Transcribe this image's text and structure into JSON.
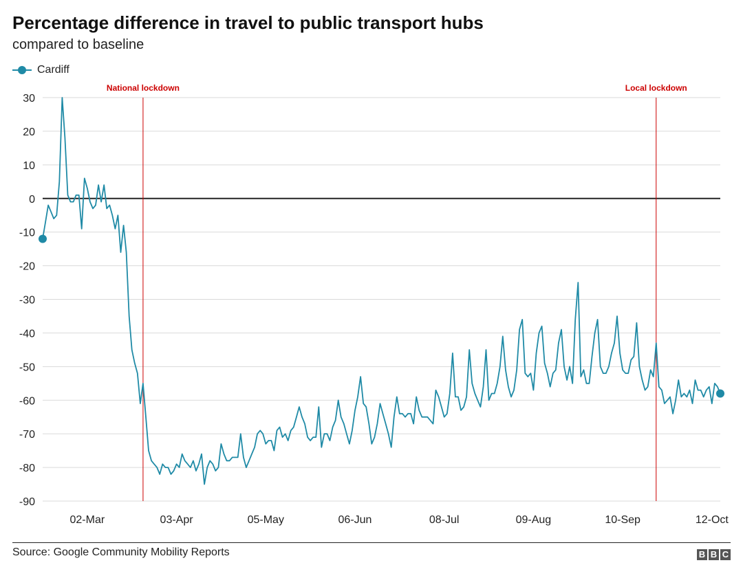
{
  "header": {
    "title": "Percentage difference in travel to public transport hubs",
    "subtitle": "compared to baseline"
  },
  "footer": {
    "source": "Source: Google Community Mobility Reports",
    "logo_letters": [
      "B",
      "B",
      "C"
    ]
  },
  "chart_data": {
    "type": "line",
    "title": "Percentage difference in travel to public transport hubs",
    "subtitle": "compared to baseline",
    "xlabel": "",
    "ylabel": "",
    "ylim": [
      -90,
      30
    ],
    "yticks": [
      30,
      20,
      10,
      0,
      -10,
      -20,
      -30,
      -40,
      -50,
      -60,
      -70,
      -80,
      -90
    ],
    "x_start": "15-Feb",
    "x_end": "16-Oct",
    "xtick_labels": [
      "02-Mar",
      "03-Apr",
      "05-May",
      "06-Jun",
      "08-Jul",
      "09-Aug",
      "10-Sep",
      "12-Oct"
    ],
    "grid": true,
    "legend_position": "top-left",
    "series": [
      {
        "name": "Cardiff",
        "color": "#1f8aa6",
        "endpoint_markers": true,
        "start_value": -12,
        "end_value": -58,
        "points": [
          [
            0,
            -12
          ],
          [
            1,
            -7
          ],
          [
            2,
            -2
          ],
          [
            3,
            -4
          ],
          [
            4,
            -6
          ],
          [
            5,
            -5
          ],
          [
            6,
            5
          ],
          [
            7,
            30
          ],
          [
            8,
            18
          ],
          [
            9,
            1
          ],
          [
            10,
            -1
          ],
          [
            11,
            -1
          ],
          [
            12,
            1
          ],
          [
            13,
            1
          ],
          [
            14,
            -9
          ],
          [
            15,
            6
          ],
          [
            16,
            3
          ],
          [
            17,
            -1
          ],
          [
            18,
            -3
          ],
          [
            19,
            -2
          ],
          [
            20,
            4
          ],
          [
            21,
            -1
          ],
          [
            22,
            4
          ],
          [
            23,
            -3
          ],
          [
            24,
            -2
          ],
          [
            25,
            -5
          ],
          [
            26,
            -9
          ],
          [
            27,
            -5
          ],
          [
            28,
            -16
          ],
          [
            29,
            -8
          ],
          [
            30,
            -16
          ],
          [
            31,
            -35
          ],
          [
            32,
            -45
          ],
          [
            33,
            -49
          ],
          [
            34,
            -52
          ],
          [
            35,
            -61
          ],
          [
            36,
            -55
          ],
          [
            37,
            -65
          ],
          [
            38,
            -75
          ],
          [
            39,
            -78
          ],
          [
            40,
            -79
          ],
          [
            41,
            -80
          ],
          [
            42,
            -82
          ],
          [
            43,
            -79
          ],
          [
            44,
            -80
          ],
          [
            45,
            -80
          ],
          [
            46,
            -82
          ],
          [
            47,
            -81
          ],
          [
            48,
            -79
          ],
          [
            49,
            -80
          ],
          [
            50,
            -76
          ],
          [
            51,
            -78
          ],
          [
            52,
            -79
          ],
          [
            53,
            -80
          ],
          [
            54,
            -78
          ],
          [
            55,
            -81
          ],
          [
            56,
            -79
          ],
          [
            57,
            -76
          ],
          [
            58,
            -85
          ],
          [
            59,
            -80
          ],
          [
            60,
            -78
          ],
          [
            61,
            -79
          ],
          [
            62,
            -81
          ],
          [
            63,
            -80
          ],
          [
            64,
            -73
          ],
          [
            65,
            -76
          ],
          [
            66,
            -78
          ],
          [
            67,
            -78
          ],
          [
            68,
            -77
          ],
          [
            69,
            -77
          ],
          [
            70,
            -77
          ],
          [
            71,
            -70
          ],
          [
            72,
            -77
          ],
          [
            73,
            -80
          ],
          [
            74,
            -78
          ],
          [
            75,
            -76
          ],
          [
            76,
            -74
          ],
          [
            77,
            -70
          ],
          [
            78,
            -69
          ],
          [
            79,
            -70
          ],
          [
            80,
            -73
          ],
          [
            81,
            -72
          ],
          [
            82,
            -72
          ],
          [
            83,
            -75
          ],
          [
            84,
            -69
          ],
          [
            85,
            -68
          ],
          [
            86,
            -71
          ],
          [
            87,
            -70
          ],
          [
            88,
            -72
          ],
          [
            89,
            -69
          ],
          [
            90,
            -68
          ],
          [
            91,
            -65
          ],
          [
            92,
            -62
          ],
          [
            93,
            -65
          ],
          [
            94,
            -67
          ],
          [
            95,
            -71
          ],
          [
            96,
            -72
          ],
          [
            97,
            -71
          ],
          [
            98,
            -71
          ],
          [
            99,
            -62
          ],
          [
            100,
            -74
          ],
          [
            101,
            -70
          ],
          [
            102,
            -70
          ],
          [
            103,
            -72
          ],
          [
            104,
            -68
          ],
          [
            105,
            -66
          ],
          [
            106,
            -60
          ],
          [
            107,
            -65
          ],
          [
            108,
            -67
          ],
          [
            109,
            -70
          ],
          [
            110,
            -73
          ],
          [
            111,
            -69
          ],
          [
            112,
            -63
          ],
          [
            113,
            -59
          ],
          [
            114,
            -53
          ],
          [
            115,
            -61
          ],
          [
            116,
            -62
          ],
          [
            117,
            -67
          ],
          [
            118,
            -73
          ],
          [
            119,
            -71
          ],
          [
            120,
            -67
          ],
          [
            121,
            -61
          ],
          [
            122,
            -64
          ],
          [
            123,
            -67
          ],
          [
            124,
            -70
          ],
          [
            125,
            -74
          ],
          [
            126,
            -65
          ],
          [
            127,
            -59
          ],
          [
            128,
            -64
          ],
          [
            129,
            -64
          ],
          [
            130,
            -65
          ],
          [
            131,
            -64
          ],
          [
            132,
            -64
          ],
          [
            133,
            -67
          ],
          [
            134,
            -59
          ],
          [
            135,
            -63
          ],
          [
            136,
            -65
          ],
          [
            137,
            -65
          ],
          [
            138,
            -65
          ],
          [
            139,
            -66
          ],
          [
            140,
            -67
          ],
          [
            141,
            -57
          ],
          [
            142,
            -59
          ],
          [
            143,
            -62
          ],
          [
            144,
            -65
          ],
          [
            145,
            -64
          ],
          [
            146,
            -58
          ],
          [
            147,
            -46
          ],
          [
            148,
            -59
          ],
          [
            149,
            -59
          ],
          [
            150,
            -63
          ],
          [
            151,
            -62
          ],
          [
            152,
            -59
          ],
          [
            153,
            -45
          ],
          [
            154,
            -55
          ],
          [
            155,
            -58
          ],
          [
            156,
            -60
          ],
          [
            157,
            -62
          ],
          [
            158,
            -56
          ],
          [
            159,
            -45
          ],
          [
            160,
            -60
          ],
          [
            161,
            -58
          ],
          [
            162,
            -58
          ],
          [
            163,
            -55
          ],
          [
            164,
            -50
          ],
          [
            165,
            -41
          ],
          [
            166,
            -51
          ],
          [
            167,
            -56
          ],
          [
            168,
            -59
          ],
          [
            169,
            -57
          ],
          [
            170,
            -51
          ],
          [
            171,
            -39
          ],
          [
            172,
            -36
          ],
          [
            173,
            -52
          ],
          [
            174,
            -53
          ],
          [
            175,
            -52
          ],
          [
            176,
            -57
          ],
          [
            177,
            -46
          ],
          [
            178,
            -40
          ],
          [
            179,
            -38
          ],
          [
            180,
            -49
          ],
          [
            181,
            -52
          ],
          [
            182,
            -56
          ],
          [
            183,
            -52
          ],
          [
            184,
            -51
          ],
          [
            185,
            -43
          ],
          [
            186,
            -39
          ],
          [
            187,
            -50
          ],
          [
            188,
            -54
          ],
          [
            189,
            -50
          ],
          [
            190,
            -55
          ],
          [
            191,
            -36
          ],
          [
            192,
            -25
          ],
          [
            193,
            -53
          ],
          [
            194,
            -51
          ],
          [
            195,
            -55
          ],
          [
            196,
            -55
          ],
          [
            197,
            -47
          ],
          [
            198,
            -40
          ],
          [
            199,
            -36
          ],
          [
            200,
            -50
          ],
          [
            201,
            -52
          ],
          [
            202,
            -52
          ],
          [
            203,
            -50
          ],
          [
            204,
            -46
          ],
          [
            205,
            -43
          ],
          [
            206,
            -35
          ],
          [
            207,
            -46
          ],
          [
            208,
            -51
          ],
          [
            209,
            -52
          ],
          [
            210,
            -52
          ],
          [
            211,
            -48
          ],
          [
            212,
            -47
          ],
          [
            213,
            -37
          ],
          [
            214,
            -50
          ],
          [
            215,
            -54
          ],
          [
            216,
            -57
          ],
          [
            217,
            -56
          ],
          [
            218,
            -51
          ],
          [
            219,
            -53
          ],
          [
            220,
            -43
          ],
          [
            221,
            -56
          ],
          [
            222,
            -57
          ],
          [
            223,
            -61
          ],
          [
            224,
            -60
          ],
          [
            225,
            -59
          ],
          [
            226,
            -64
          ],
          [
            227,
            -60
          ],
          [
            228,
            -54
          ],
          [
            229,
            -59
          ],
          [
            230,
            -58
          ],
          [
            231,
            -59
          ],
          [
            232,
            -57
          ],
          [
            233,
            -61
          ],
          [
            234,
            -54
          ],
          [
            235,
            -57
          ],
          [
            236,
            -57
          ],
          [
            237,
            -59
          ],
          [
            238,
            -57
          ],
          [
            239,
            -56
          ],
          [
            240,
            -61
          ],
          [
            241,
            -55
          ],
          [
            242,
            -56
          ],
          [
            243,
            -58
          ]
        ]
      }
    ],
    "reference_lines": [
      {
        "label": "National lockdown",
        "x": 36,
        "color": "#cc0000"
      },
      {
        "label": "Local lockdown",
        "x": 220,
        "color": "#cc0000"
      }
    ],
    "zero_line": true
  }
}
